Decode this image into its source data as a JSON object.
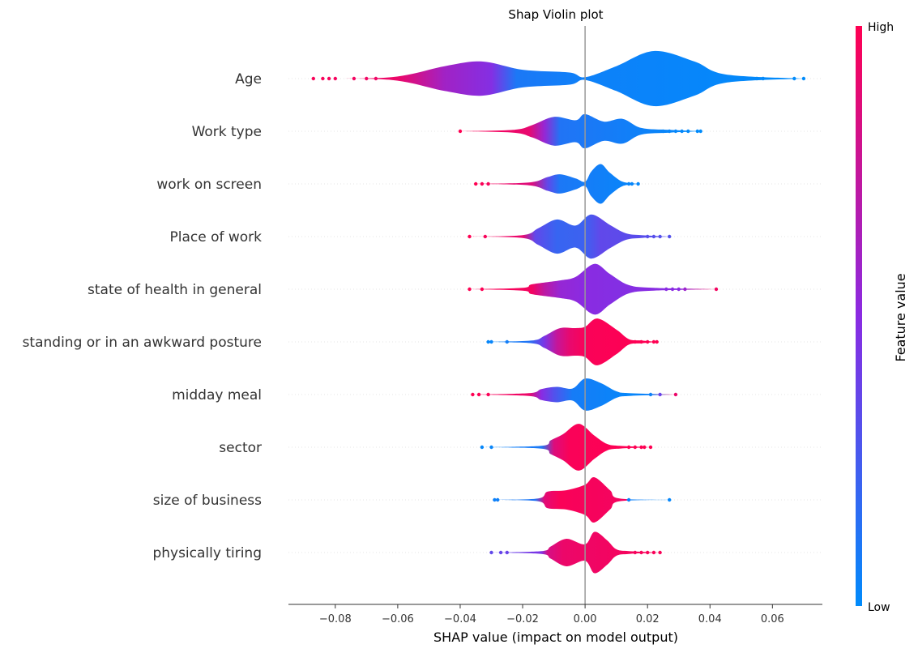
{
  "chart_data": {
    "type": "violin",
    "title": "Shap Violin plot",
    "xlabel": "SHAP value (impact on model output)",
    "xlim": [
      -0.095,
      0.076
    ],
    "xticks": [
      -0.08,
      -0.06,
      -0.04,
      -0.02,
      0.0,
      0.02,
      0.04,
      0.06
    ],
    "xtick_labels": [
      "−0.08",
      "−0.06",
      "−0.04",
      "−0.02",
      "0.00",
      "0.02",
      "0.04",
      "0.06"
    ],
    "colorbar": {
      "label": "Feature value",
      "high_label": "High",
      "low_label": "Low",
      "low_color": "#008bfb",
      "mid_color": "#8a2be2",
      "high_color": "#ff0052"
    },
    "features": [
      {
        "name": "Age",
        "range": [
          -0.087,
          0.07
        ],
        "profile": [
          [
            -0.062,
            0.05
          ],
          [
            -0.045,
            0.45
          ],
          [
            -0.033,
            0.62
          ],
          [
            -0.02,
            0.32
          ],
          [
            -0.005,
            0.22
          ],
          [
            0.0,
            0.05
          ],
          [
            0.01,
            0.45
          ],
          [
            0.022,
            1.0
          ],
          [
            0.035,
            0.62
          ],
          [
            0.045,
            0.15
          ]
        ],
        "outliers": [
          -0.087,
          -0.084,
          -0.082,
          -0.08,
          -0.074,
          -0.07,
          -0.067,
          0.049,
          0.051,
          0.053,
          0.055,
          0.057,
          0.067,
          0.07
        ],
        "colors": [
          [
            -0.09,
            0.98
          ],
          [
            -0.06,
            0.92
          ],
          [
            -0.045,
            0.6
          ],
          [
            -0.03,
            0.48
          ],
          [
            -0.022,
            0.1
          ],
          [
            0.0,
            0.05
          ],
          [
            0.07,
            0.0
          ]
        ]
      },
      {
        "name": "Work type",
        "range": [
          -0.04,
          0.037
        ],
        "profile": [
          [
            -0.023,
            0.05
          ],
          [
            -0.017,
            0.22
          ],
          [
            -0.01,
            0.52
          ],
          [
            -0.003,
            0.4
          ],
          [
            0.0,
            0.62
          ],
          [
            0.006,
            0.35
          ],
          [
            0.012,
            0.45
          ],
          [
            0.018,
            0.12
          ],
          [
            0.027,
            0.05
          ]
        ],
        "outliers": [
          -0.04,
          0.025,
          0.027,
          0.029,
          0.031,
          0.033,
          0.036,
          0.037
        ],
        "colors": [
          [
            -0.04,
            1.0
          ],
          [
            -0.018,
            0.9
          ],
          [
            -0.013,
            0.55
          ],
          [
            -0.008,
            0.12
          ],
          [
            0.037,
            0.0
          ]
        ]
      },
      {
        "name": "work on screen",
        "range": [
          -0.035,
          0.017
        ],
        "profile": [
          [
            -0.018,
            0.05
          ],
          [
            -0.012,
            0.25
          ],
          [
            -0.008,
            0.35
          ],
          [
            -0.003,
            0.2
          ],
          [
            0.0,
            0.08
          ],
          [
            0.002,
            0.45
          ],
          [
            0.005,
            0.72
          ],
          [
            0.008,
            0.4
          ],
          [
            0.012,
            0.08
          ]
        ],
        "outliers": [
          -0.035,
          -0.033,
          -0.031,
          0.014,
          0.015,
          0.017
        ],
        "colors": [
          [
            -0.035,
            1.0
          ],
          [
            -0.017,
            0.85
          ],
          [
            -0.012,
            0.35
          ],
          [
            -0.008,
            0.1
          ],
          [
            0.017,
            0.02
          ]
        ]
      },
      {
        "name": "Place of work",
        "range": [
          -0.037,
          0.027
        ],
        "profile": [
          [
            -0.02,
            0.05
          ],
          [
            -0.015,
            0.3
          ],
          [
            -0.009,
            0.62
          ],
          [
            -0.003,
            0.4
          ],
          [
            0.002,
            0.8
          ],
          [
            0.008,
            0.42
          ],
          [
            0.013,
            0.12
          ],
          [
            0.018,
            0.05
          ]
        ],
        "outliers": [
          -0.037,
          -0.032,
          0.02,
          0.022,
          0.024,
          0.027
        ],
        "colors": [
          [
            -0.037,
            1.0
          ],
          [
            -0.02,
            0.9
          ],
          [
            -0.016,
            0.35
          ],
          [
            -0.009,
            0.2
          ],
          [
            0.0,
            0.22
          ],
          [
            0.005,
            0.35
          ],
          [
            0.027,
            0.3
          ]
        ]
      },
      {
        "name": "state of health in general",
        "range": [
          -0.037,
          0.042
        ],
        "profile": [
          [
            -0.02,
            0.05
          ],
          [
            -0.017,
            0.18
          ],
          [
            -0.008,
            0.32
          ],
          [
            -0.003,
            0.45
          ],
          [
            0.003,
            0.92
          ],
          [
            0.008,
            0.55
          ],
          [
            0.014,
            0.15
          ],
          [
            0.022,
            0.05
          ]
        ],
        "outliers": [
          -0.037,
          -0.033,
          0.026,
          0.028,
          0.03,
          0.032,
          0.042
        ],
        "colors": [
          [
            -0.037,
            1.0
          ],
          [
            -0.017,
            0.95
          ],
          [
            -0.013,
            0.72
          ],
          [
            -0.008,
            0.55
          ],
          [
            0.0,
            0.5
          ],
          [
            0.01,
            0.48
          ],
          [
            0.03,
            0.5
          ],
          [
            0.042,
            0.95
          ]
        ]
      },
      {
        "name": "standing or in an awkward posture",
        "range": [
          -0.031,
          0.023
        ],
        "profile": [
          [
            -0.017,
            0.05
          ],
          [
            -0.013,
            0.22
          ],
          [
            -0.008,
            0.5
          ],
          [
            -0.003,
            0.5
          ],
          [
            0.0,
            0.55
          ],
          [
            0.004,
            0.85
          ],
          [
            0.01,
            0.45
          ],
          [
            0.014,
            0.1
          ],
          [
            0.018,
            0.05
          ]
        ],
        "outliers": [
          -0.031,
          -0.03,
          -0.025,
          0.016,
          0.018,
          0.02,
          0.022,
          0.023
        ],
        "colors": [
          [
            -0.031,
            0.02
          ],
          [
            -0.018,
            0.12
          ],
          [
            -0.013,
            0.45
          ],
          [
            -0.009,
            0.75
          ],
          [
            -0.005,
            0.9
          ],
          [
            0.0,
            0.98
          ],
          [
            0.023,
            1.0
          ]
        ]
      },
      {
        "name": "midday meal",
        "range": [
          -0.036,
          0.029
        ],
        "profile": [
          [
            -0.018,
            0.05
          ],
          [
            -0.014,
            0.2
          ],
          [
            -0.009,
            0.28
          ],
          [
            -0.004,
            0.22
          ],
          [
            0.0,
            0.58
          ],
          [
            0.005,
            0.42
          ],
          [
            0.01,
            0.12
          ],
          [
            0.014,
            0.05
          ]
        ],
        "outliers": [
          -0.036,
          -0.034,
          -0.031,
          0.021,
          0.024,
          0.029
        ],
        "colors": [
          [
            -0.036,
            1.0
          ],
          [
            -0.018,
            0.92
          ],
          [
            -0.014,
            0.5
          ],
          [
            -0.01,
            0.3
          ],
          [
            -0.004,
            0.08
          ],
          [
            0.014,
            0.02
          ],
          [
            0.021,
            0.05
          ],
          [
            0.029,
            0.92
          ]
        ]
      },
      {
        "name": "sector",
        "range": [
          -0.033,
          0.021
        ],
        "profile": [
          [
            -0.014,
            0.05
          ],
          [
            -0.011,
            0.25
          ],
          [
            -0.007,
            0.48
          ],
          [
            -0.002,
            0.85
          ],
          [
            0.003,
            0.42
          ],
          [
            0.007,
            0.12
          ],
          [
            0.011,
            0.05
          ]
        ],
        "outliers": [
          -0.033,
          -0.03,
          0.014,
          0.016,
          0.018,
          0.019,
          0.021
        ],
        "colors": [
          [
            -0.033,
            0.02
          ],
          [
            -0.014,
            0.1
          ],
          [
            -0.01,
            0.85
          ],
          [
            -0.005,
            0.98
          ],
          [
            0.021,
            1.0
          ]
        ]
      },
      {
        "name": "size of business",
        "range": [
          -0.029,
          0.027
        ],
        "profile": [
          [
            -0.015,
            0.05
          ],
          [
            -0.012,
            0.3
          ],
          [
            -0.006,
            0.35
          ],
          [
            0.0,
            0.55
          ],
          [
            0.003,
            0.82
          ],
          [
            0.008,
            0.35
          ],
          [
            0.011,
            0.05
          ]
        ],
        "outliers": [
          -0.029,
          -0.028,
          0.014,
          0.027
        ],
        "colors": [
          [
            -0.029,
            0.05
          ],
          [
            -0.016,
            0.12
          ],
          [
            -0.013,
            0.88
          ],
          [
            -0.008,
            0.98
          ],
          [
            0.013,
            0.95
          ],
          [
            0.014,
            0.05
          ],
          [
            0.027,
            0.02
          ]
        ]
      },
      {
        "name": "physically tiring",
        "range": [
          -0.03,
          0.024
        ],
        "profile": [
          [
            -0.014,
            0.05
          ],
          [
            -0.011,
            0.22
          ],
          [
            -0.006,
            0.5
          ],
          [
            0.0,
            0.3
          ],
          [
            0.003,
            0.75
          ],
          [
            0.007,
            0.45
          ],
          [
            0.01,
            0.12
          ],
          [
            0.014,
            0.05
          ]
        ],
        "outliers": [
          -0.03,
          -0.027,
          -0.025,
          0.016,
          0.018,
          0.02,
          0.022,
          0.024
        ],
        "colors": [
          [
            -0.03,
            0.35
          ],
          [
            -0.014,
            0.45
          ],
          [
            -0.012,
            0.82
          ],
          [
            -0.007,
            0.92
          ],
          [
            0.024,
            0.98
          ]
        ]
      }
    ]
  }
}
